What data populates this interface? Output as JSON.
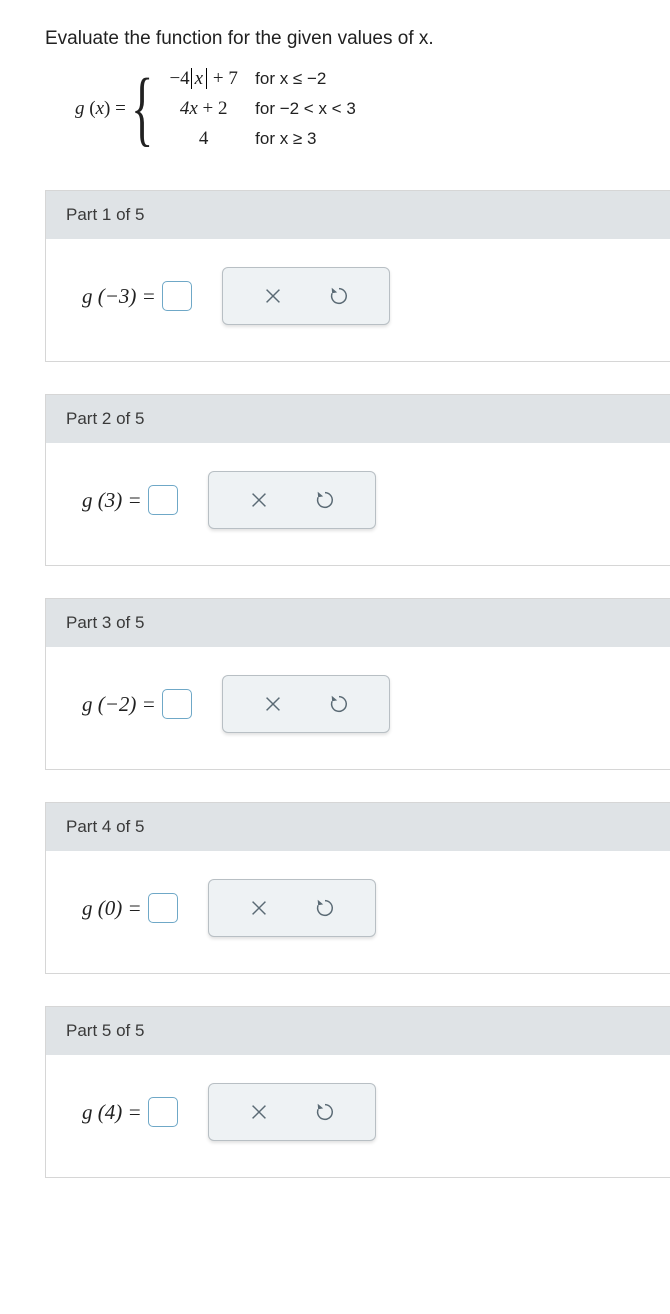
{
  "prompt": "Evaluate the function for the given values of x.",
  "function": {
    "lhs_prefix": "g",
    "lhs_var": "x",
    "pieces": [
      {
        "expr_prefix": "−4",
        "abs_var": "x",
        "expr_suffix": " + 7",
        "cond": "for x ≤ −2"
      },
      {
        "expr": "4x + 2",
        "cond": "for −2 < x < 3"
      },
      {
        "expr": "4",
        "cond": "for x ≥ 3"
      }
    ]
  },
  "parts": [
    {
      "header": "Part 1 of 5",
      "lhs": "g (−3) ="
    },
    {
      "header": "Part 2 of 5",
      "lhs": "g (3) ="
    },
    {
      "header": "Part 3 of 5",
      "lhs": "g (−2) ="
    },
    {
      "header": "Part 4 of 5",
      "lhs": "g (0) ="
    },
    {
      "header": "Part 5 of 5",
      "lhs": "g (4) ="
    }
  ],
  "colors": {
    "header_bg": "#dfe3e6",
    "answer_border": "#6fa8c7",
    "btn_bg": "#eef2f4",
    "btn_border": "#b8bfc4",
    "icon": "#5a6a74"
  }
}
